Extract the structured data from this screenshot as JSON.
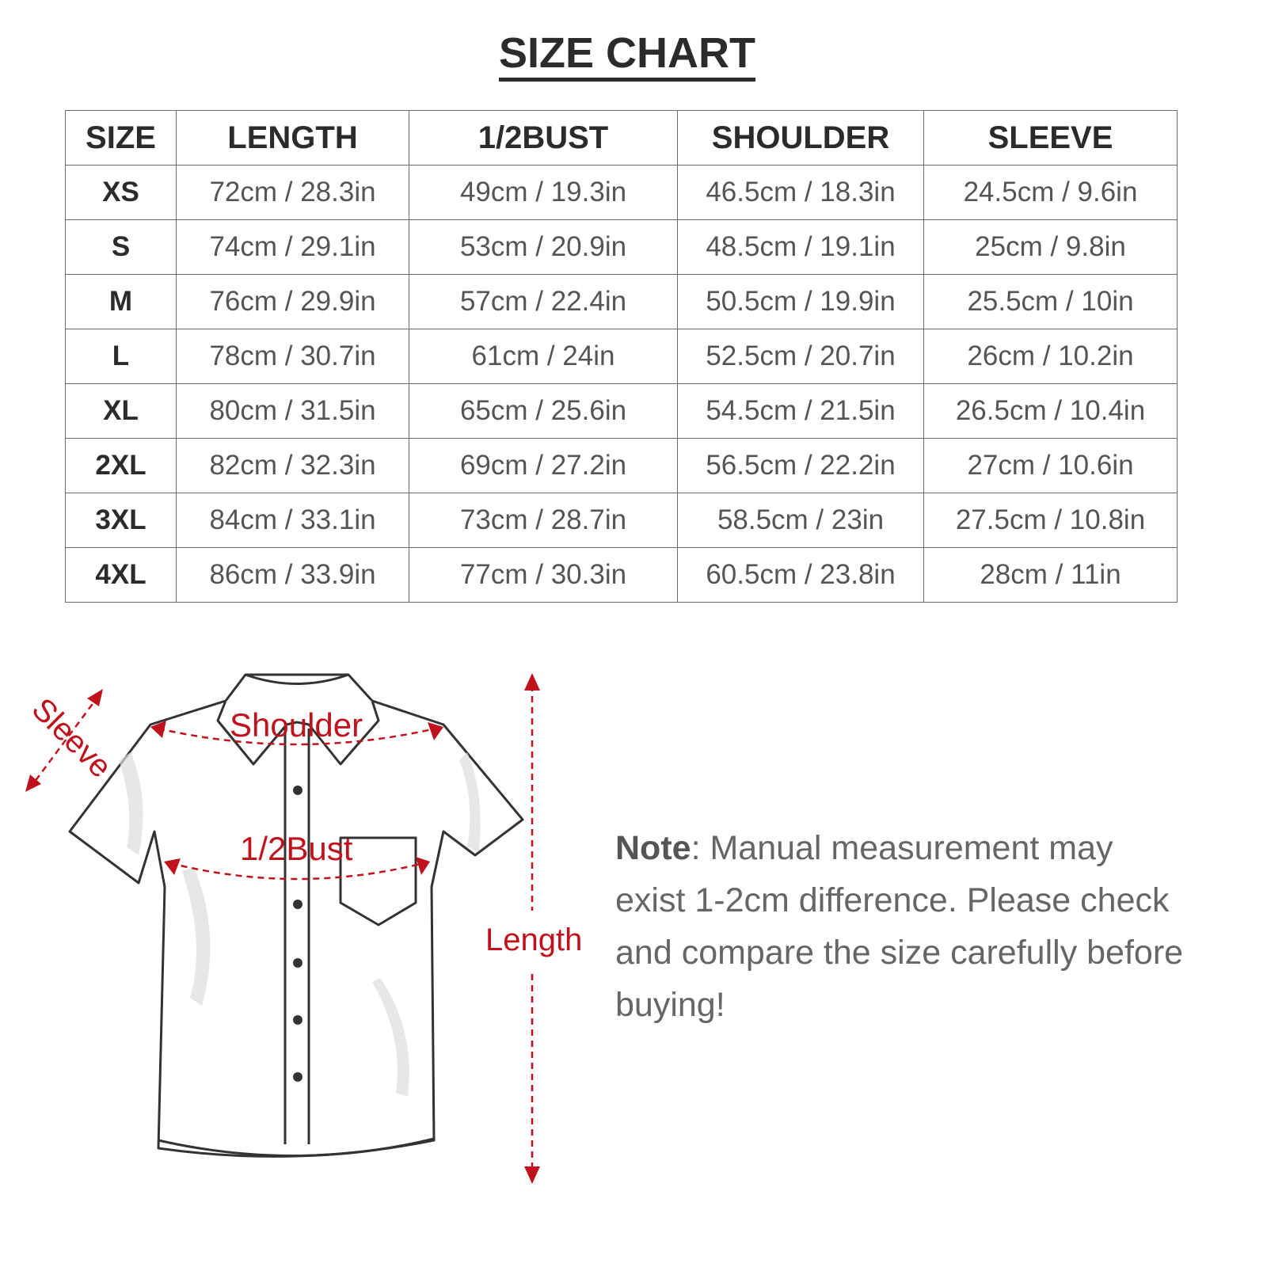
{
  "title": "SIZE CHART",
  "table": {
    "headers": [
      "SIZE",
      "LENGTH",
      "1/2BUST",
      "SHOULDER",
      "SLEEVE"
    ],
    "rows": [
      [
        "XS",
        "72cm / 28.3in",
        "49cm / 19.3in",
        "46.5cm / 18.3in",
        "24.5cm / 9.6in"
      ],
      [
        "S",
        "74cm / 29.1in",
        "53cm / 20.9in",
        "48.5cm / 19.1in",
        "25cm / 9.8in"
      ],
      [
        "M",
        "76cm / 29.9in",
        "57cm / 22.4in",
        "50.5cm / 19.9in",
        "25.5cm / 10in"
      ],
      [
        "L",
        "78cm / 30.7in",
        "61cm / 24in",
        "52.5cm / 20.7in",
        "26cm / 10.2in"
      ],
      [
        "XL",
        "80cm / 31.5in",
        "65cm / 25.6in",
        "54.5cm / 21.5in",
        "26.5cm / 10.4in"
      ],
      [
        "2XL",
        "82cm / 32.3in",
        "69cm / 27.2in",
        "56.5cm / 22.2in",
        "27cm / 10.6in"
      ],
      [
        "3XL",
        "84cm / 33.1in",
        "73cm / 28.7in",
        "58.5cm / 23in",
        "27.5cm / 10.8in"
      ],
      [
        "4XL",
        "86cm / 33.9in",
        "77cm / 30.3in",
        "60.5cm / 23.8in",
        "28cm / 11in"
      ]
    ]
  },
  "diagram": {
    "sleeve": "Sleeve",
    "shoulder": "Shoulder",
    "bust": "1/2Bust",
    "length": "Length",
    "accent_color": "#c0121c"
  },
  "note": {
    "label": "Note",
    "text": ": Manual measurement may exist 1-2cm difference. Please check and compare the size carefully before buying!"
  }
}
